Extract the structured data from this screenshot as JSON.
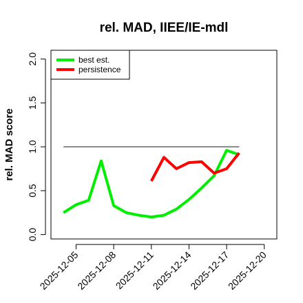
{
  "chart_data": {
    "type": "line",
    "title": "rel. MAD, IIEE/IE-mdl",
    "ylabel": "rel. MAD score",
    "xlabel": "",
    "xlim": [
      "2025-12-03",
      "2025-12-21"
    ],
    "ylim": [
      -0.05,
      2.1
    ],
    "x_ticks": [
      "2025-12-05",
      "2025-12-08",
      "2025-12-11",
      "2025-12-14",
      "2025-12-17",
      "2025-12-20"
    ],
    "y_ticks": [
      "0.0",
      "0.5",
      "1.0",
      "1.5",
      "2.0"
    ],
    "legend_position": "top-left",
    "reference_line": {
      "y": 1.0,
      "x_start": "2025-12-04",
      "x_end": "2025-12-18",
      "color": "#555555"
    },
    "series": [
      {
        "name": "best est.",
        "color": "#00ee00",
        "x": [
          "2025-12-04",
          "2025-12-05",
          "2025-12-06",
          "2025-12-07",
          "2025-12-08",
          "2025-12-09",
          "2025-12-10",
          "2025-12-11",
          "2025-12-12",
          "2025-12-13",
          "2025-12-14",
          "2025-12-15",
          "2025-12-16",
          "2025-12-17",
          "2025-12-18"
        ],
        "values": [
          0.25,
          0.34,
          0.39,
          0.84,
          0.33,
          0.25,
          0.22,
          0.2,
          0.22,
          0.29,
          0.4,
          0.53,
          0.67,
          0.96,
          0.91
        ]
      },
      {
        "name": "persistence",
        "color": "#ff0000",
        "x": [
          "2025-12-11",
          "2025-12-12",
          "2025-12-13",
          "2025-12-14",
          "2025-12-15",
          "2025-12-16",
          "2025-12-17",
          "2025-12-18"
        ],
        "values": [
          0.61,
          0.88,
          0.75,
          0.82,
          0.83,
          0.7,
          0.75,
          0.93
        ]
      }
    ]
  }
}
